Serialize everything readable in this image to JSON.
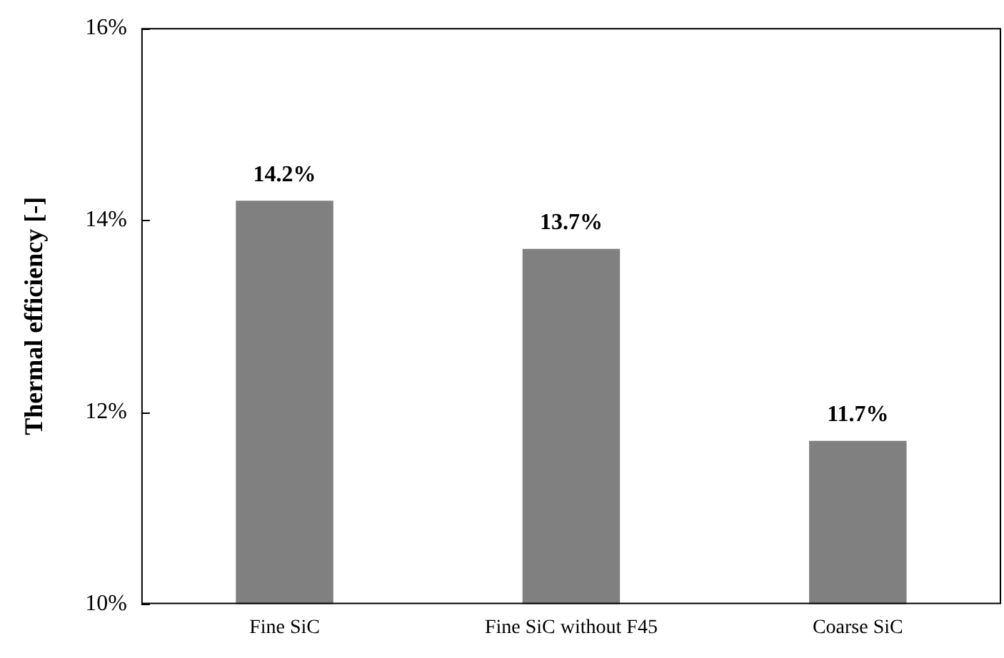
{
  "chart_data": {
    "type": "bar",
    "ylabel": "Thermal efficiency [-]",
    "categories": [
      "Fine SiC",
      "Fine SiC without F45",
      "Coarse SiC"
    ],
    "values": [
      14.2,
      13.7,
      11.7
    ],
    "value_labels": [
      "14.2%",
      "13.7%",
      "11.7%"
    ],
    "color": "#808080",
    "ylim": [
      10,
      16
    ],
    "yticks": [
      {
        "value": 10,
        "label": "10%"
      },
      {
        "value": 12,
        "label": "12%"
      },
      {
        "value": 14,
        "label": "14%"
      },
      {
        "value": 16,
        "label": "16%"
      }
    ],
    "grid": false,
    "legend": false
  }
}
